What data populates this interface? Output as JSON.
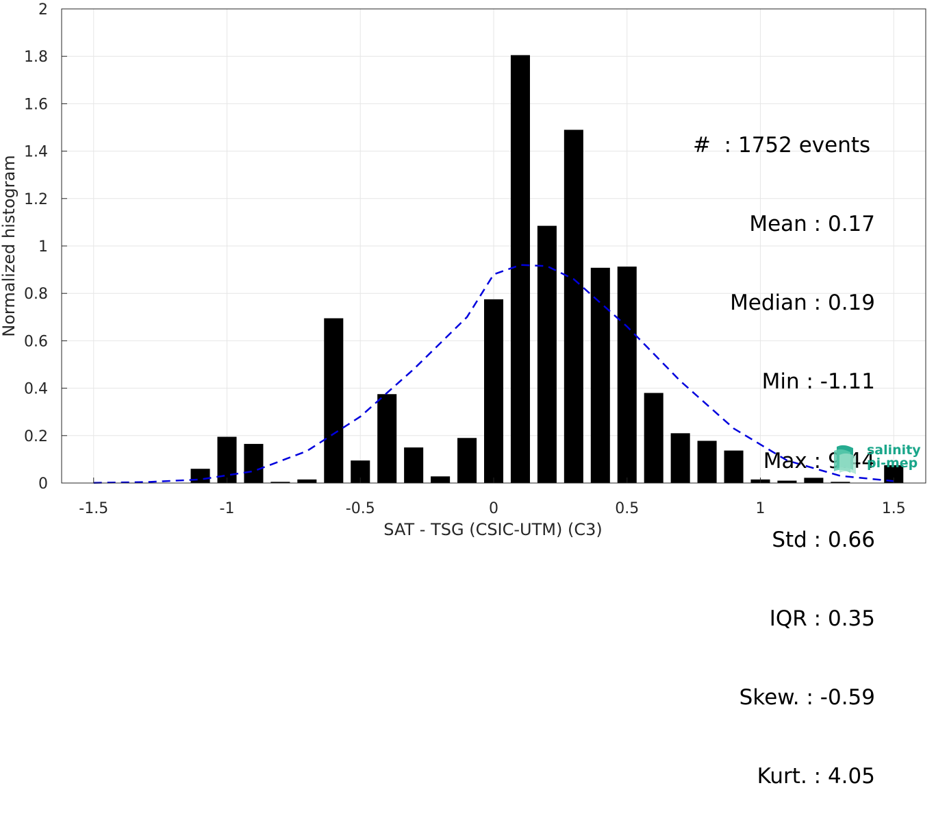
{
  "chart_data": {
    "type": "bar",
    "xlabel": "SAT - TSG (CSIC-UTM) (C3)",
    "ylabel": "Normalized histogram",
    "xlim": [
      -1.62,
      1.62
    ],
    "ylim": [
      0,
      2
    ],
    "xticks": [
      "-1.5",
      "-1",
      "-0.5",
      "0",
      "0.5",
      "1",
      "1.5"
    ],
    "yticks": [
      "0",
      "0.2",
      "0.4",
      "0.6",
      "0.8",
      "1",
      "1.2",
      "1.4",
      "1.6",
      "1.8",
      "2"
    ],
    "grid": true,
    "bin_width": 0.1,
    "bars": [
      {
        "x": -1.1,
        "y": 0.06
      },
      {
        "x": -1.0,
        "y": 0.195
      },
      {
        "x": -0.9,
        "y": 0.165
      },
      {
        "x": -0.8,
        "y": 0.005
      },
      {
        "x": -0.7,
        "y": 0.015
      },
      {
        "x": -0.6,
        "y": 0.695
      },
      {
        "x": -0.5,
        "y": 0.095
      },
      {
        "x": -0.4,
        "y": 0.375
      },
      {
        "x": -0.3,
        "y": 0.15
      },
      {
        "x": -0.2,
        "y": 0.028
      },
      {
        "x": -0.1,
        "y": 0.19
      },
      {
        "x": 0.0,
        "y": 0.775
      },
      {
        "x": 0.1,
        "y": 1.805
      },
      {
        "x": 0.2,
        "y": 1.085
      },
      {
        "x": 0.3,
        "y": 1.49
      },
      {
        "x": 0.4,
        "y": 0.908
      },
      {
        "x": 0.5,
        "y": 0.913
      },
      {
        "x": 0.6,
        "y": 0.38
      },
      {
        "x": 0.7,
        "y": 0.21
      },
      {
        "x": 0.8,
        "y": 0.178
      },
      {
        "x": 0.9,
        "y": 0.137
      },
      {
        "x": 1.0,
        "y": 0.015
      },
      {
        "x": 1.1,
        "y": 0.01
      },
      {
        "x": 1.2,
        "y": 0.022
      },
      {
        "x": 1.3,
        "y": 0.005
      },
      {
        "x": 1.5,
        "y": 0.075
      }
    ],
    "fit_curve": {
      "style": "dashed",
      "color": "#0000dd",
      "points": [
        [
          -1.5,
          0.001
        ],
        [
          -1.3,
          0.004
        ],
        [
          -1.1,
          0.015
        ],
        [
          -0.9,
          0.05
        ],
        [
          -0.7,
          0.135
        ],
        [
          -0.5,
          0.28
        ],
        [
          -0.3,
          0.48
        ],
        [
          -0.1,
          0.7
        ],
        [
          0.0,
          0.88
        ],
        [
          0.1,
          0.92
        ],
        [
          0.2,
          0.915
        ],
        [
          0.3,
          0.86
        ],
        [
          0.5,
          0.66
        ],
        [
          0.7,
          0.43
        ],
        [
          0.9,
          0.23
        ],
        [
          1.1,
          0.095
        ],
        [
          1.3,
          0.03
        ],
        [
          1.5,
          0.008
        ]
      ]
    },
    "bar_color": "#000000"
  },
  "stats": {
    "events": "#  : 1752 events",
    "lines": [
      "Mean : 0.17",
      "Median : 0.19",
      "Min : -1.11",
      "Max : 9.44",
      "Std : 0.66",
      "IQR : 0.35",
      "Skew. : -0.59",
      "Kurt. : 4.05"
    ]
  },
  "logo": {
    "line1": "salinity",
    "line2": "pi-mep",
    "color": "#1aa68a"
  }
}
